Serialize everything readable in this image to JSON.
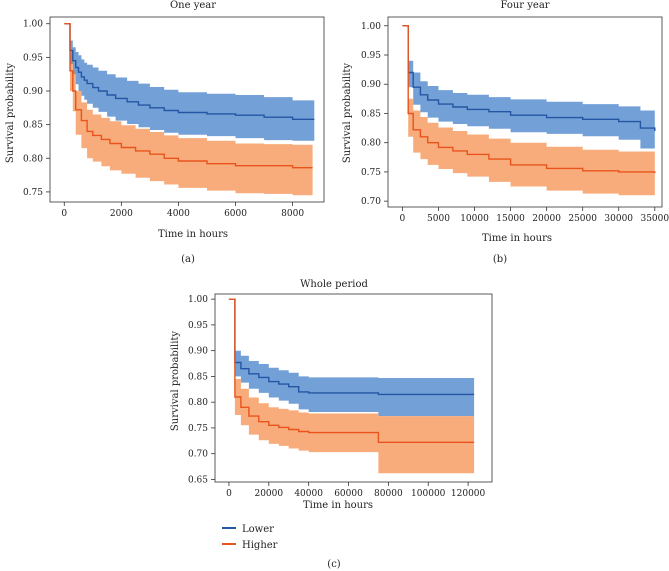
{
  "colors": {
    "lower_line": "#2456a4",
    "lower_band": "#5b8fd0",
    "higher_line": "#e8541c",
    "higher_band": "#f7a36d",
    "overlap_band": "#8a8585"
  },
  "legend": {
    "items": [
      {
        "name": "Lower",
        "color": "#2456a4"
      },
      {
        "name": "Higher",
        "color": "#e8541c"
      }
    ]
  },
  "chart_data": [
    {
      "type": "line",
      "subtype": "kaplan-meier step with confidence band",
      "title": "One year",
      "caption": "(a)",
      "xlabel": "Time in hours",
      "ylabel": "Survival probability",
      "xlim": [
        -500,
        9100
      ],
      "ylim": [
        0.735,
        1.01
      ],
      "xticks": [
        0,
        2000,
        4000,
        6000,
        8000
      ],
      "xtick_labels": [
        "0",
        "2000",
        "4000",
        "6000",
        "8000"
      ],
      "yticks": [
        0.75,
        0.8,
        0.85,
        0.9,
        0.95,
        1.0
      ],
      "ytick_labels": [
        "0.75",
        "0.80",
        "0.85",
        "0.90",
        "0.95",
        "1.00"
      ],
      "series": [
        {
          "name": "Lower",
          "x": [
            0,
            200,
            300,
            400,
            500,
            600,
            700,
            800,
            1000,
            1200,
            1500,
            1800,
            2200,
            2600,
            3000,
            3500,
            4000,
            5000,
            6000,
            7000,
            8000,
            8760
          ],
          "y": [
            1.0,
            0.96,
            0.945,
            0.935,
            0.928,
            0.921,
            0.916,
            0.911,
            0.905,
            0.9,
            0.894,
            0.889,
            0.884,
            0.879,
            0.875,
            0.871,
            0.868,
            0.866,
            0.864,
            0.861,
            0.858,
            0.858
          ],
          "lower": [
            1.0,
            0.94,
            0.925,
            0.91,
            0.9,
            0.893,
            0.887,
            0.881,
            0.875,
            0.869,
            0.862,
            0.856,
            0.851,
            0.846,
            0.842,
            0.838,
            0.835,
            0.833,
            0.83,
            0.827,
            0.826,
            0.826
          ],
          "upper": [
            1.0,
            0.975,
            0.965,
            0.958,
            0.953,
            0.947,
            0.942,
            0.939,
            0.935,
            0.93,
            0.925,
            0.92,
            0.915,
            0.911,
            0.906,
            0.902,
            0.898,
            0.896,
            0.894,
            0.891,
            0.886,
            0.886
          ]
        },
        {
          "name": "Higher",
          "x": [
            0,
            200,
            300,
            400,
            600,
            800,
            1000,
            1300,
            1600,
            2000,
            2500,
            3000,
            3500,
            4000,
            5000,
            6000,
            7000,
            8000,
            8700
          ],
          "y": [
            1.0,
            0.93,
            0.9,
            0.872,
            0.856,
            0.84,
            0.834,
            0.828,
            0.822,
            0.816,
            0.811,
            0.806,
            0.8,
            0.796,
            0.792,
            0.789,
            0.789,
            0.786,
            0.786
          ],
          "lower": [
            1.0,
            0.9,
            0.87,
            0.835,
            0.815,
            0.8,
            0.795,
            0.788,
            0.782,
            0.777,
            0.771,
            0.766,
            0.761,
            0.756,
            0.752,
            0.748,
            0.747,
            0.745,
            0.745
          ],
          "upper": [
            1.0,
            0.955,
            0.93,
            0.9,
            0.883,
            0.872,
            0.865,
            0.86,
            0.855,
            0.849,
            0.844,
            0.839,
            0.834,
            0.83,
            0.826,
            0.822,
            0.821,
            0.82,
            0.82
          ]
        }
      ]
    },
    {
      "type": "line",
      "subtype": "kaplan-meier step with confidence band",
      "title": "Four year",
      "caption": "(b)",
      "xlabel": "Time in hours",
      "ylabel": "Survival probability",
      "xlim": [
        -2000,
        36000
      ],
      "ylim": [
        0.69,
        1.015
      ],
      "xticks": [
        0,
        5000,
        10000,
        15000,
        20000,
        25000,
        30000,
        35000
      ],
      "xtick_labels": [
        "0",
        "5000",
        "10000",
        "15000",
        "20000",
        "25000",
        "30000",
        "35000"
      ],
      "yticks": [
        0.7,
        0.75,
        0.8,
        0.85,
        0.9,
        0.95,
        1.0
      ],
      "ytick_labels": [
        "0.70",
        "0.75",
        "0.80",
        "0.85",
        "0.90",
        "0.95",
        "1.00"
      ],
      "series": [
        {
          "name": "Lower",
          "x": [
            0,
            800,
            1500,
            2500,
            3500,
            5000,
            7000,
            9000,
            12000,
            15000,
            20000,
            25000,
            30000,
            33000,
            35000
          ],
          "y": [
            1.0,
            0.92,
            0.895,
            0.882,
            0.873,
            0.866,
            0.861,
            0.857,
            0.853,
            0.847,
            0.843,
            0.84,
            0.836,
            0.825,
            0.82
          ],
          "lower": [
            1.0,
            0.895,
            0.865,
            0.852,
            0.843,
            0.836,
            0.832,
            0.828,
            0.824,
            0.818,
            0.815,
            0.811,
            0.805,
            0.79,
            0.785
          ],
          "upper": [
            1.0,
            0.94,
            0.92,
            0.905,
            0.897,
            0.89,
            0.885,
            0.882,
            0.878,
            0.874,
            0.87,
            0.866,
            0.862,
            0.855,
            0.85
          ]
        },
        {
          "name": "Higher",
          "x": [
            0,
            800,
            1500,
            2500,
            3500,
            5000,
            7000,
            9000,
            12000,
            15000,
            20000,
            25000,
            30000,
            35000
          ],
          "y": [
            1.0,
            0.85,
            0.822,
            0.81,
            0.8,
            0.792,
            0.786,
            0.78,
            0.772,
            0.762,
            0.756,
            0.752,
            0.75,
            0.748
          ],
          "lower": [
            1.0,
            0.81,
            0.783,
            0.772,
            0.762,
            0.755,
            0.748,
            0.742,
            0.733,
            0.725,
            0.718,
            0.713,
            0.71,
            0.708
          ],
          "upper": [
            1.0,
            0.875,
            0.855,
            0.844,
            0.834,
            0.826,
            0.82,
            0.814,
            0.807,
            0.8,
            0.793,
            0.788,
            0.785,
            0.785
          ]
        }
      ]
    },
    {
      "type": "line",
      "subtype": "kaplan-meier step with confidence band",
      "title": "Whole period",
      "caption": "(c)",
      "xlabel": "Time in hours",
      "ylabel": "Survival probability",
      "xlim": [
        -7000,
        132000
      ],
      "ylim": [
        0.645,
        1.01
      ],
      "xticks": [
        0,
        20000,
        40000,
        60000,
        80000,
        100000,
        120000
      ],
      "xtick_labels": [
        "0",
        "20000",
        "40000",
        "60000",
        "80000",
        "100000",
        "120000"
      ],
      "yticks": [
        0.65,
        0.7,
        0.75,
        0.8,
        0.85,
        0.9,
        0.95,
        1.0
      ],
      "ytick_labels": [
        "0.65",
        "0.70",
        "0.75",
        "0.80",
        "0.85",
        "0.90",
        "0.95",
        "1.00"
      ],
      "series": [
        {
          "name": "Lower",
          "x": [
            0,
            3000,
            6000,
            10000,
            15000,
            20000,
            25000,
            30000,
            35000,
            40000,
            75000,
            123000
          ],
          "y": [
            1.0,
            0.877,
            0.865,
            0.855,
            0.848,
            0.84,
            0.835,
            0.83,
            0.82,
            0.818,
            0.815,
            0.815
          ],
          "lower": [
            1.0,
            0.85,
            0.838,
            0.826,
            0.818,
            0.809,
            0.803,
            0.797,
            0.786,
            0.781,
            0.773,
            0.773
          ],
          "upper": [
            1.0,
            0.9,
            0.89,
            0.88,
            0.874,
            0.867,
            0.862,
            0.857,
            0.85,
            0.848,
            0.847,
            0.847
          ]
        },
        {
          "name": "Higher",
          "x": [
            0,
            3000,
            6000,
            10000,
            15000,
            20000,
            25000,
            30000,
            35000,
            40000,
            75000,
            123000
          ],
          "y": [
            1.0,
            0.81,
            0.79,
            0.773,
            0.762,
            0.755,
            0.751,
            0.747,
            0.743,
            0.741,
            0.722,
            0.722
          ],
          "lower": [
            1.0,
            0.775,
            0.755,
            0.737,
            0.726,
            0.719,
            0.715,
            0.71,
            0.706,
            0.703,
            0.662,
            0.662
          ],
          "upper": [
            1.0,
            0.845,
            0.826,
            0.809,
            0.798,
            0.79,
            0.787,
            0.784,
            0.78,
            0.778,
            0.773,
            0.773
          ]
        }
      ]
    }
  ]
}
